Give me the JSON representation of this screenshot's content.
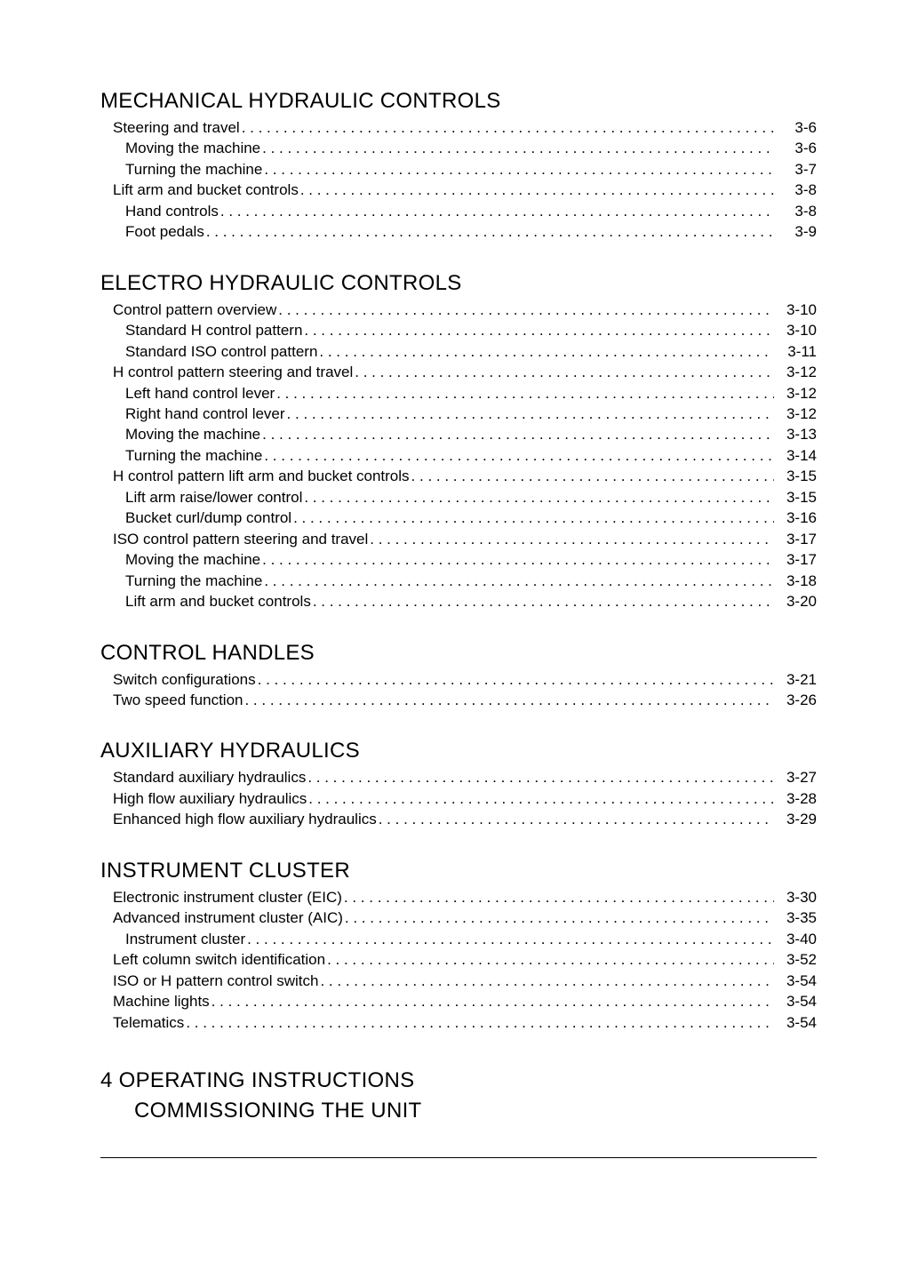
{
  "sections": [
    {
      "id": "mech",
      "heading": "MECHANICAL HYDRAULIC CONTROLS",
      "headingMarginBottom": 4,
      "lines": [
        {
          "level": 1,
          "label": "Steering and travel",
          "page": "3-6"
        },
        {
          "level": 2,
          "label": "Moving the machine",
          "page": "3-6"
        },
        {
          "level": 2,
          "label": "Turning the machine",
          "page": "3-7"
        },
        {
          "level": 1,
          "label": "Lift arm and bucket controls",
          "page": "3-8"
        },
        {
          "level": 2,
          "label": "Hand controls",
          "page": "3-8"
        },
        {
          "level": 2,
          "label": "Foot pedals",
          "page": "3-9"
        }
      ]
    },
    {
      "id": "electro",
      "heading": "ELECTRO HYDRAULIC CONTROLS",
      "headingMarginBottom": 4,
      "lines": [
        {
          "level": 1,
          "label": "Control pattern overview",
          "page": "3-10"
        },
        {
          "level": 2,
          "label": "Standard H control pattern",
          "page": "3-10"
        },
        {
          "level": 2,
          "label": "Standard ISO control pattern",
          "page": "3-11"
        },
        {
          "level": 1,
          "label": "H control pattern steering and travel",
          "page": "3-12"
        },
        {
          "level": 2,
          "label": "Left hand control lever",
          "page": "3-12"
        },
        {
          "level": 2,
          "label": "Right hand control lever",
          "page": "3-12"
        },
        {
          "level": 2,
          "label": "Moving the machine",
          "page": "3-13"
        },
        {
          "level": 2,
          "label": "Turning the machine",
          "page": "3-14"
        },
        {
          "level": 1,
          "label": "H control pattern lift arm and bucket controls",
          "page": "3-15"
        },
        {
          "level": 2,
          "label": "Lift arm raise/lower control",
          "page": "3-15"
        },
        {
          "level": 2,
          "label": "Bucket curl/dump control",
          "page": "3-16"
        },
        {
          "level": 1,
          "label": "ISO control pattern steering and travel",
          "page": "3-17"
        },
        {
          "level": 2,
          "label": "Moving the machine",
          "page": "3-17"
        },
        {
          "level": 2,
          "label": "Turning the machine",
          "page": "3-18"
        },
        {
          "level": 2,
          "label": "Lift arm and bucket controls",
          "page": "3-20"
        }
      ]
    },
    {
      "id": "handles",
      "heading": "CONTROL HANDLES",
      "headingMarginBottom": 4,
      "lines": [
        {
          "level": 1,
          "label": "Switch configurations",
          "page": "3-21"
        },
        {
          "level": 1,
          "label": "Two speed function",
          "page": "3-26"
        }
      ]
    },
    {
      "id": "aux",
      "heading": "AUXILIARY HYDRAULICS",
      "headingMarginBottom": 4,
      "lines": [
        {
          "level": 1,
          "label": "Standard auxiliary hydraulics",
          "page": "3-27"
        },
        {
          "level": 1,
          "label": "High flow auxiliary hydraulics",
          "page": "3-28"
        },
        {
          "level": 1,
          "label": "Enhanced high flow auxiliary hydraulics",
          "page": "3-29"
        }
      ]
    },
    {
      "id": "cluster",
      "heading": "INSTRUMENT CLUSTER",
      "headingMarginBottom": 4,
      "lines": [
        {
          "level": 1,
          "label": "Electronic instrument cluster (EIC)",
          "page": "3-30"
        },
        {
          "level": 1,
          "label": "Advanced instrument cluster (AIC)",
          "page": "3-35"
        },
        {
          "level": 2,
          "label": "Instrument cluster",
          "page": "3-40"
        },
        {
          "level": 1,
          "label": "Left column switch identification",
          "page": "3-52"
        },
        {
          "level": 1,
          "label": "ISO or H pattern control switch",
          "page": "3-54"
        },
        {
          "level": 1,
          "label": "Machine lights",
          "page": "3-54"
        },
        {
          "level": 1,
          "label": "Telematics",
          "page": "3-54"
        }
      ]
    }
  ],
  "chapter": {
    "number": "4",
    "title": "OPERATING INSTRUCTIONS",
    "sub": "COMMISSIONING THE UNIT"
  }
}
